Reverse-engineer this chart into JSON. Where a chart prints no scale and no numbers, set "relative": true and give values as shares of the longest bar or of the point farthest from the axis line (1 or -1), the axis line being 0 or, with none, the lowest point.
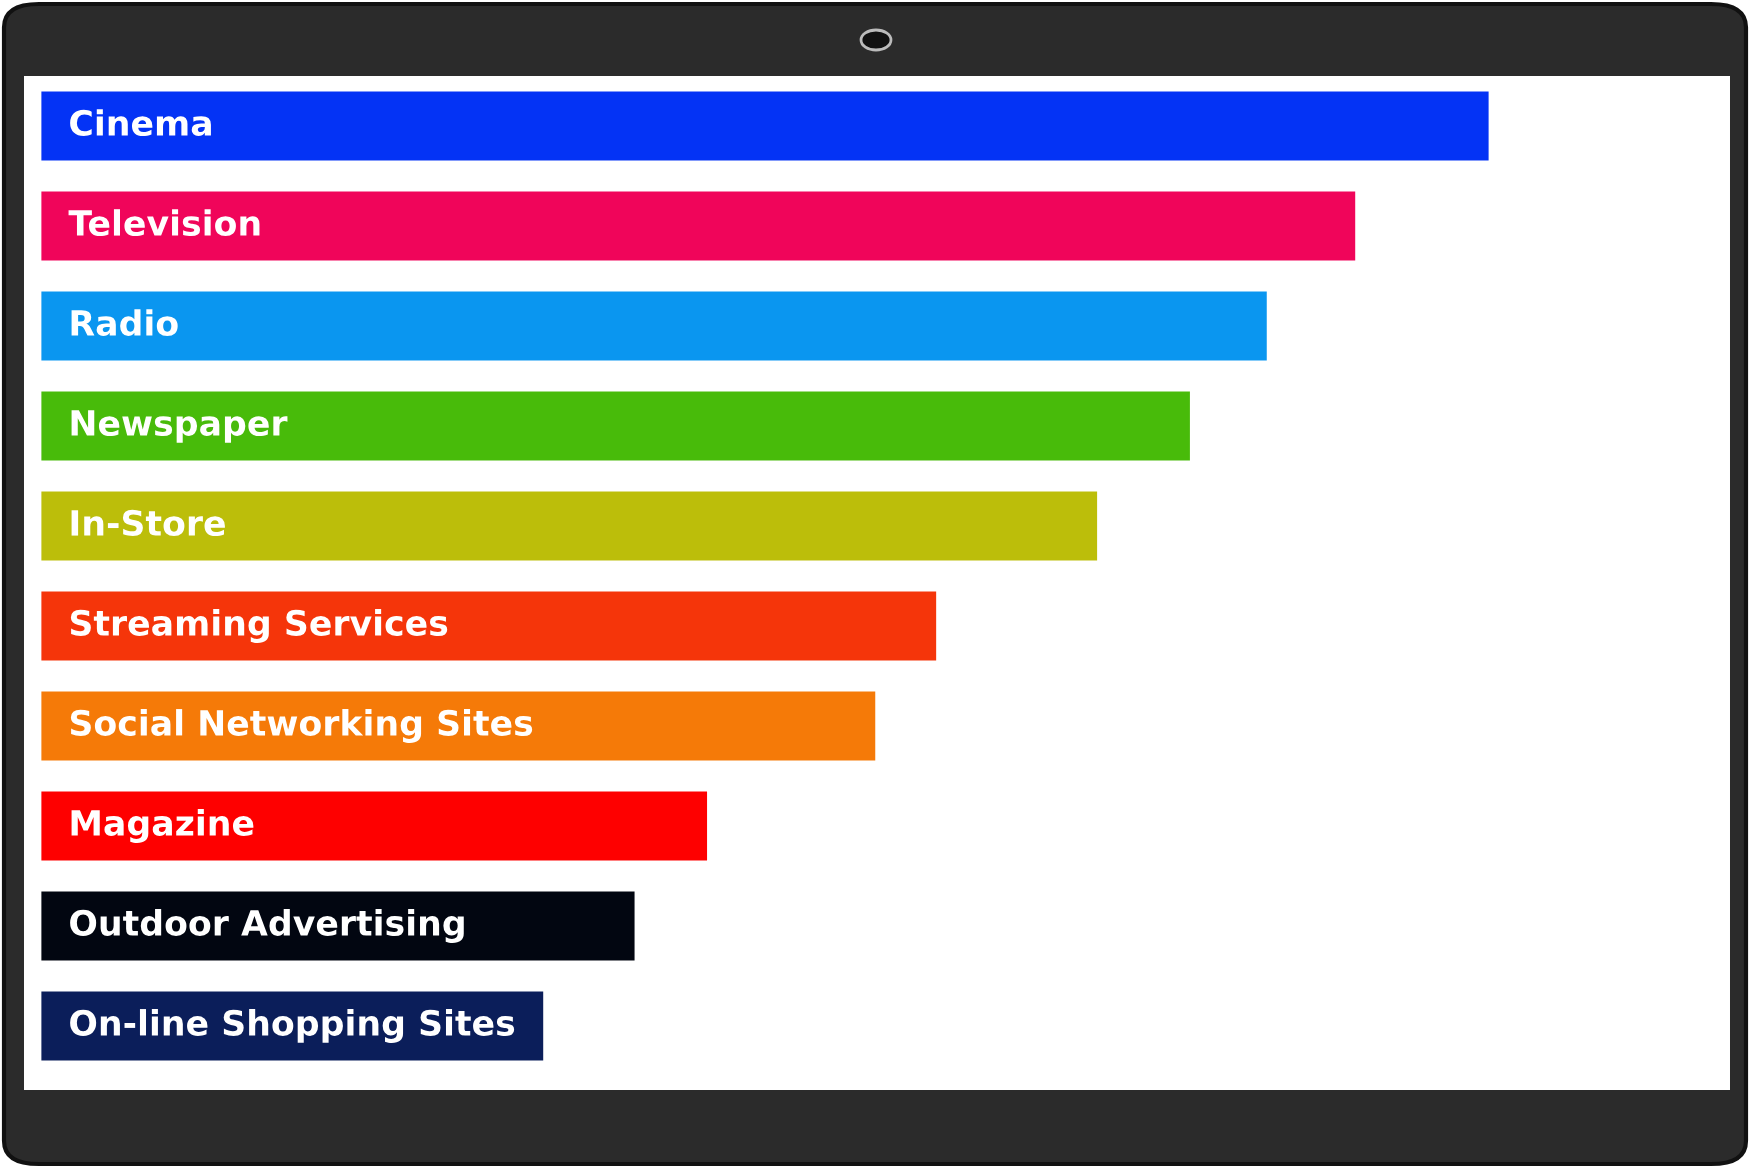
{
  "chart_data": {
    "type": "bar",
    "orientation": "horizontal",
    "relative": true,
    "categories": [
      "Cinema",
      "Television",
      "Radio",
      "Newspaper",
      "In-Store",
      "Streaming Services",
      "Social Networking Sites",
      "Magazine",
      "Outdoor Advertising",
      "On-line Shopping Sites"
    ],
    "values": [
      1,
      0.908,
      0.847,
      0.794,
      0.73,
      0.619,
      0.577,
      0.461,
      0.411,
      0.348
    ],
    "colors": [
      "#0433f5",
      "#f0055a",
      "#0a96f0",
      "#48bb0a",
      "#bcbe0a",
      "#f5350a",
      "#f57a08",
      "#fe0000",
      "#020611",
      "#0b1e5a"
    ]
  }
}
